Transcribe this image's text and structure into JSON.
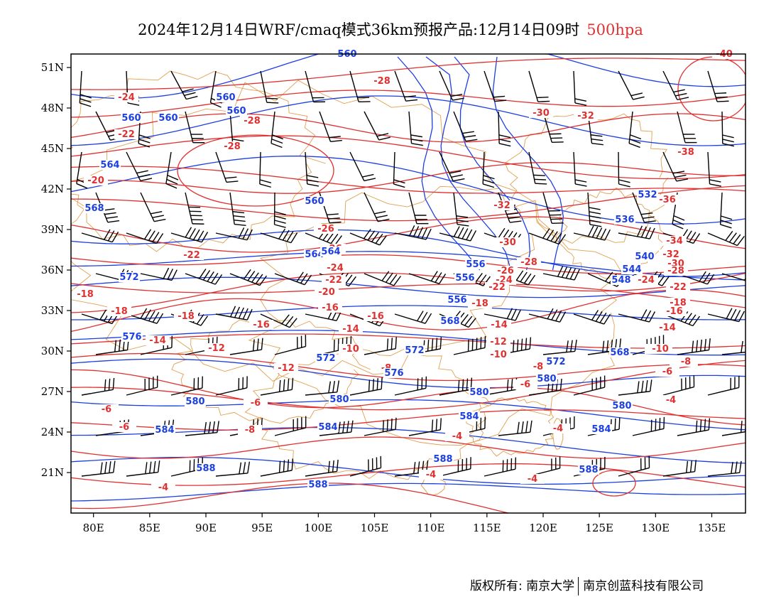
{
  "title": {
    "main": "2024年12月14日WRF/cmaq模式36km预报产品:12月14日09时",
    "level": "500hpa"
  },
  "credit": {
    "owner": "版权所有: 南京大学",
    "company": "南京创蓝科技有限公司"
  },
  "colors": {
    "temperature": "#e03030",
    "geopotential": "#1c3fe0",
    "wind": "#000000",
    "border": "#e0a050",
    "frame": "#000000"
  },
  "axes": {
    "lon_ticks": [
      "80E",
      "85E",
      "90E",
      "95E",
      "100E",
      "105E",
      "110E",
      "115E",
      "120E",
      "125E",
      "130E",
      "135E"
    ],
    "lat_ticks": [
      "51N",
      "48N",
      "45N",
      "42N",
      "39N",
      "36N",
      "33N",
      "30N",
      "27N",
      "24N",
      "21N"
    ]
  },
  "temperature_labels": [
    "-24",
    "-22",
    "-20",
    "-28",
    "-28",
    "-28",
    "-30",
    "-32",
    "-32",
    "-38",
    "-36",
    "-40",
    "-26",
    "-26",
    "-22",
    "-24",
    "-22",
    "-20",
    "-18",
    "-18",
    "-16",
    "-16",
    "-18",
    "-16",
    "-14",
    "-12",
    "-14",
    "-12",
    "-10",
    "-10",
    "-8",
    "-8",
    "-6",
    "-6",
    "-8",
    "-6",
    "-4",
    "-4",
    "-4",
    "-4",
    "-30",
    "-28",
    "-26",
    "-24",
    "-22",
    "-18",
    "-14",
    "-12",
    "-10",
    "-8",
    "-6",
    "-4",
    "-34",
    "-32",
    "-30",
    "-28",
    "-24",
    "-22",
    "-18",
    "-16",
    "-14",
    "-10",
    "-8",
    "-6",
    "-4",
    "-4",
    "-6"
  ],
  "geopotential_labels": [
    "560",
    "560",
    "560",
    "560",
    "564",
    "568",
    "560",
    "564",
    "556",
    "556",
    "556",
    "560",
    "564",
    "532",
    "536",
    "540",
    "544",
    "548",
    "572",
    "576",
    "572",
    "572",
    "568",
    "568",
    "572",
    "576",
    "580",
    "580",
    "580",
    "580",
    "584",
    "584",
    "584",
    "584",
    "588",
    "588",
    "588",
    "588",
    "580"
  ],
  "chart_data": {
    "type": "map",
    "title": "2024年12月14日WRF/cmaq模式36km预报产品:12月14日09时 500hpa",
    "x_range": [
      "78E",
      "138E"
    ],
    "y_range": [
      "18N",
      "52N"
    ],
    "temperature_contours_C": [
      -40,
      -38,
      -36,
      -34,
      -32,
      -30,
      -28,
      -26,
      -24,
      -22,
      -20,
      -18,
      -16,
      -14,
      -12,
      -10,
      -8,
      -6,
      -4
    ],
    "geopotential_contours_dagpm": [
      532,
      536,
      540,
      544,
      548,
      552,
      556,
      560,
      564,
      568,
      572,
      576,
      580,
      584,
      588
    ]
  }
}
